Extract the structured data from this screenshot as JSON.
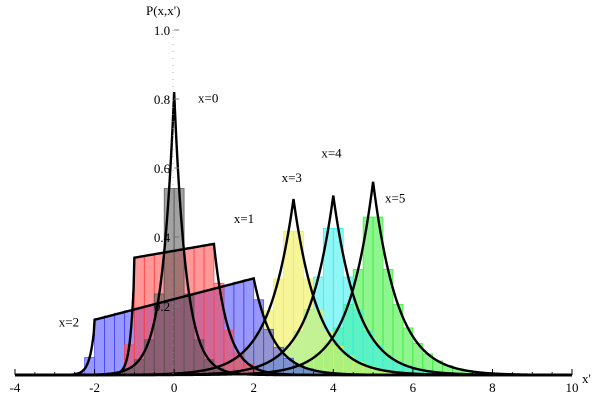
{
  "chart_data": {
    "type": "bar",
    "xlabel": "x'",
    "ylabel": "P(x,x')",
    "xlim": [
      -4,
      10
    ],
    "ylim": [
      0,
      1.0
    ],
    "x_ticks": [
      "-4",
      "-2",
      "0",
      "2",
      "4",
      "6",
      "8",
      "10"
    ],
    "x_tick_values": [
      -4,
      -2,
      0,
      2,
      4,
      6,
      8,
      10
    ],
    "y_ticks": [
      "0.2",
      "0.4",
      "0.6",
      "0.8",
      "1.0"
    ],
    "y_tick_values": [
      0.2,
      0.4,
      0.6,
      0.8,
      1.0
    ],
    "bin_width": 0.25,
    "grid": false,
    "series": [
      {
        "name": "x=5",
        "color": "#33ee33",
        "shape": "peak",
        "center": 5,
        "peak": 0.56,
        "decay": 0.62,
        "xmin": 0.0,
        "xmax": 10.0
      },
      {
        "name": "x=4",
        "color": "#33eeee",
        "shape": "peak",
        "center": 4,
        "peak": 0.52,
        "decay": 0.62,
        "xmin": -0.5,
        "xmax": 10.0
      },
      {
        "name": "x=3",
        "color": "#eeee44",
        "shape": "peak",
        "center": 3,
        "peak": 0.51,
        "decay": 0.62,
        "xmin": -1.5,
        "xmax": 10.0
      },
      {
        "name": "x=2",
        "color": "#4444ff",
        "shape": "plateau",
        "left": -2,
        "right": 2,
        "level_left": 0.16,
        "level_right": 0.28,
        "edge_width": 0.12,
        "tail": 0.5
      },
      {
        "name": "x=1",
        "color": "#ff4444",
        "shape": "plateau",
        "left": -1,
        "right": 1,
        "level_left": 0.34,
        "level_right": 0.38,
        "edge_width": 0.1,
        "tail": 0.35
      },
      {
        "name": "x=0",
        "color": "#555555",
        "shape": "peak",
        "center": 0,
        "peak": 0.82,
        "decay": 0.3,
        "xmin": -2.5,
        "xmax": 2.5
      }
    ],
    "annotations": [
      {
        "text": "x=0",
        "x": 0.6,
        "y": 0.79
      },
      {
        "text": "x=1",
        "x": 1.5,
        "y": 0.44
      },
      {
        "text": "x=2",
        "x": -2.9,
        "y": 0.14
      },
      {
        "text": "x=3",
        "x": 2.7,
        "y": 0.56
      },
      {
        "text": "x=4",
        "x": 3.7,
        "y": 0.63
      },
      {
        "text": "x=5",
        "x": 5.3,
        "y": 0.5
      }
    ]
  }
}
